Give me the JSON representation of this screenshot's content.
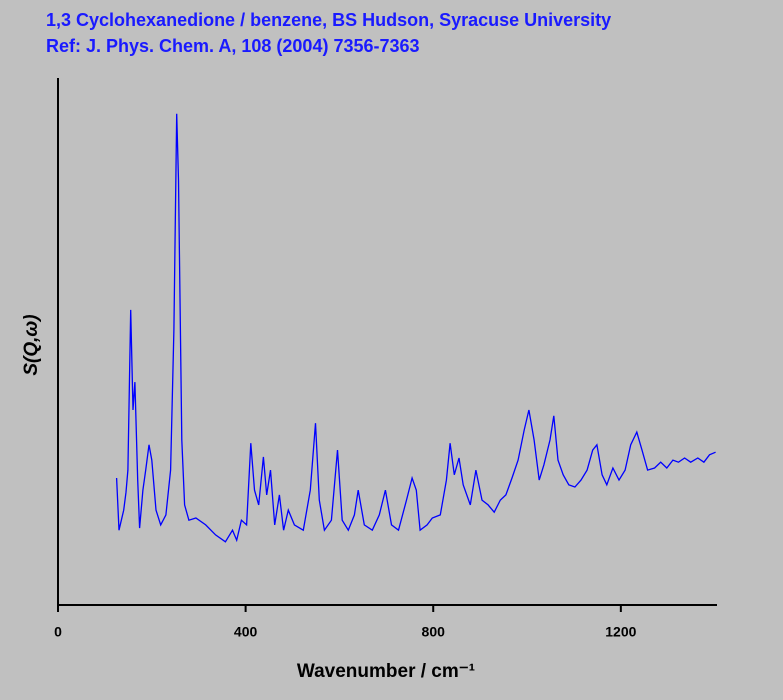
{
  "chart_data": {
    "type": "line",
    "title": "1,3 Cyclohexanedione / benzene, BS Hudson, Syracuse University",
    "subtitle": "Ref: J. Phys. Chem. A, 108 (2004) 7356-7363",
    "xlabel": "Wavenumber / cm⁻¹",
    "ylabel": "S(Q,ω)",
    "xlim": [
      0,
      1405
    ],
    "xticks": [
      0,
      400,
      800,
      1200
    ],
    "ylim": [
      0,
      100
    ],
    "x": [
      125,
      130,
      140,
      145,
      149,
      155,
      160,
      164,
      170,
      174,
      181,
      187,
      194,
      200,
      209,
      219,
      230,
      240,
      247,
      253,
      257,
      264,
      270,
      279,
      294,
      315,
      336,
      357,
      372,
      381,
      391,
      402,
      411,
      419,
      428,
      438,
      445,
      453,
      462,
      472,
      481,
      491,
      504,
      523,
      538,
      549,
      557,
      568,
      583,
      596,
      606,
      619,
      632,
      640,
      653,
      670,
      685,
      698,
      711,
      726,
      743,
      755,
      764,
      772,
      787,
      798,
      815,
      828,
      836,
      845,
      855,
      864,
      879,
      891,
      904,
      917,
      930,
      943,
      955,
      968,
      981,
      994,
      1004,
      1015,
      1026,
      1036,
      1049,
      1057,
      1066,
      1077,
      1089,
      1102,
      1115,
      1128,
      1140,
      1149,
      1160,
      1170,
      1183,
      1196,
      1209,
      1221,
      1234,
      1245,
      1257,
      1272,
      1285,
      1298,
      1311,
      1323,
      1336,
      1349,
      1364,
      1377,
      1389,
      1402
    ],
    "series": [
      {
        "color": "#0000ff",
        "values": [
          24.1,
          14.2,
          18.0,
          21.4,
          25.6,
          56.0,
          37.0,
          42.3,
          23.7,
          14.6,
          21.8,
          25.6,
          30.4,
          27.5,
          18.0,
          15.2,
          17.1,
          25.6,
          52.2,
          93.2,
          80.6,
          31.3,
          19.0,
          16.1,
          16.5,
          15.2,
          13.3,
          12.0,
          14.2,
          12.3,
          16.1,
          15.2,
          30.7,
          21.8,
          19.0,
          28.1,
          20.9,
          25.6,
          15.2,
          20.9,
          14.2,
          18.0,
          15.2,
          14.2,
          21.8,
          34.5,
          19.9,
          14.2,
          16.1,
          29.4,
          16.1,
          14.2,
          17.1,
          21.8,
          15.2,
          14.2,
          17.1,
          21.8,
          15.2,
          14.2,
          19.9,
          24.1,
          21.8,
          14.2,
          15.2,
          16.5,
          17.1,
          23.7,
          30.7,
          24.7,
          27.9,
          22.8,
          19.0,
          25.6,
          19.9,
          19.0,
          17.6,
          19.9,
          20.9,
          24.1,
          27.5,
          33.2,
          37.0,
          31.3,
          23.7,
          26.6,
          31.3,
          35.9,
          27.5,
          24.7,
          22.8,
          22.4,
          23.7,
          25.6,
          29.4,
          30.4,
          24.7,
          22.8,
          26.0,
          23.7,
          25.6,
          30.4,
          32.8,
          29.4,
          25.6,
          26.0,
          27.1,
          26.0,
          27.5,
          27.1,
          27.9,
          27.1,
          27.9,
          27.1,
          28.5,
          29.0
        ]
      }
    ]
  }
}
